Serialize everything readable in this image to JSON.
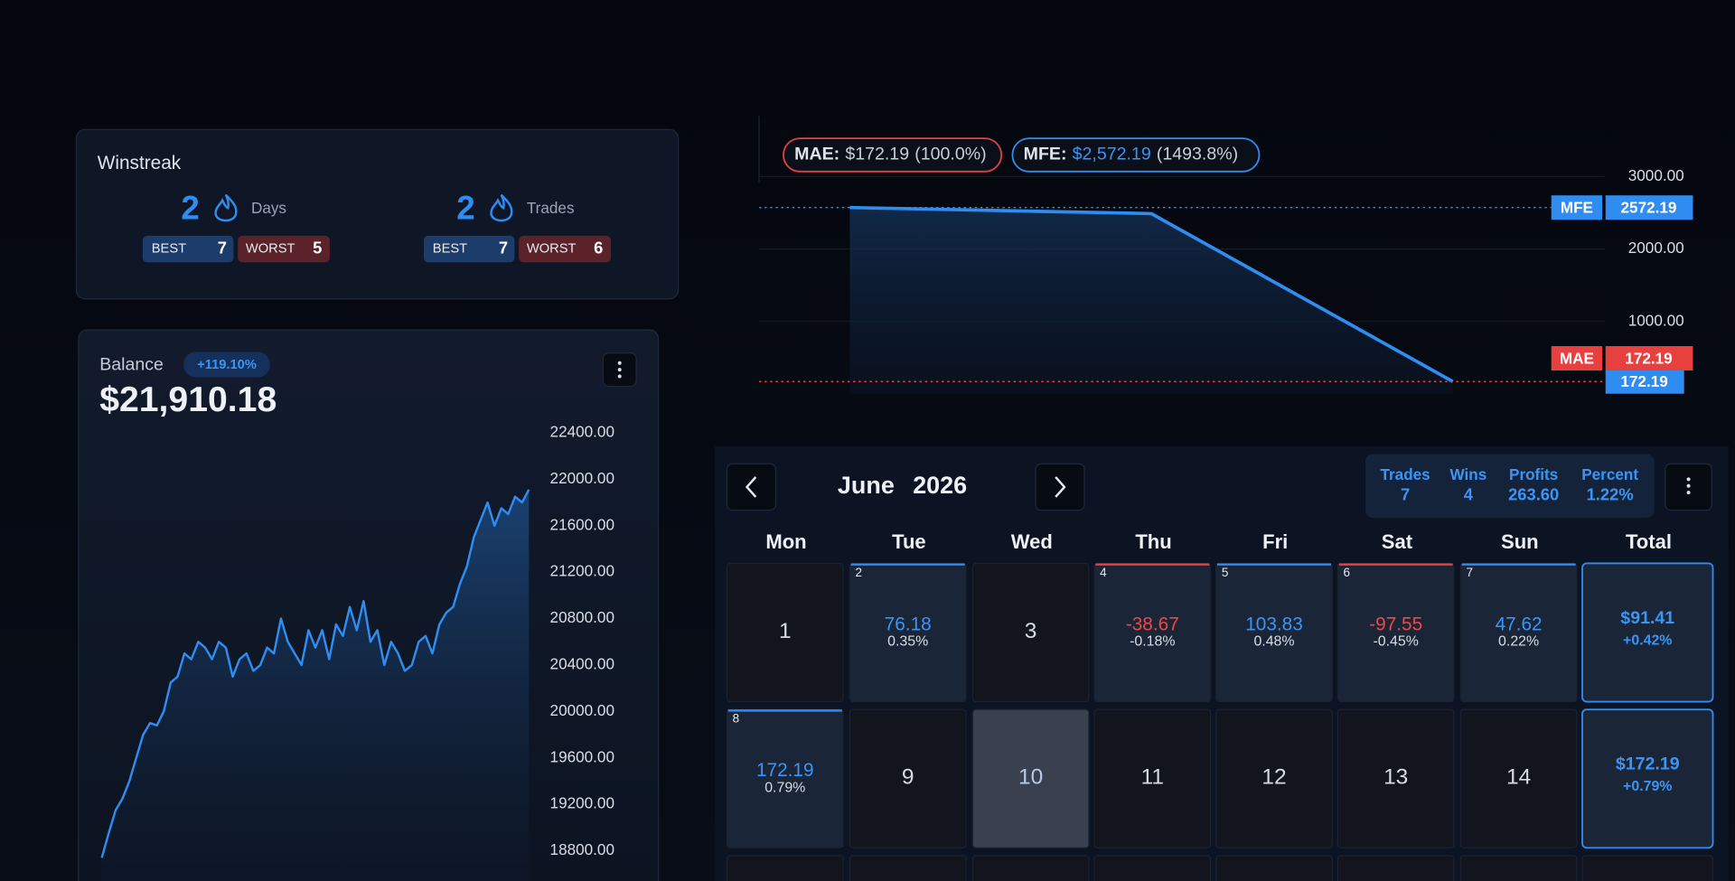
{
  "winstreak": {
    "title": "Winstreak",
    "best_label": "BEST",
    "worst_label": "WORST",
    "groups": [
      {
        "count": 2,
        "unit": "Days",
        "best": 7,
        "worst": 5
      },
      {
        "count": 2,
        "unit": "Trades",
        "best": 7,
        "worst": 6
      }
    ]
  },
  "chart_data": [
    {
      "type": "line",
      "title": "Balance",
      "change": "+119.10%",
      "current": "$21,910.18",
      "color": "#2f8cf0",
      "values": [
        18740,
        18950,
        19150,
        19250,
        19400,
        19600,
        19800,
        19900,
        19880,
        20000,
        20250,
        20300,
        20500,
        20450,
        20600,
        20550,
        20450,
        20600,
        20550,
        20300,
        20450,
        20500,
        20350,
        20400,
        20550,
        20500,
        20800,
        20600,
        20500,
        20400,
        20700,
        20550,
        20700,
        20450,
        20750,
        20650,
        20900,
        20700,
        20950,
        20600,
        20700,
        20400,
        20600,
        20500,
        20350,
        20400,
        20600,
        20650,
        20500,
        20750,
        20850,
        20900,
        21100,
        21250,
        21500,
        21650,
        21800,
        21600,
        21750,
        21700,
        21850,
        21800,
        21910
      ],
      "ylim": [
        18540,
        22505
      ],
      "yticks": [
        {
          "value": 18800,
          "label": "18800.00"
        },
        {
          "value": 19200,
          "label": "19200.00"
        },
        {
          "value": 19600,
          "label": "19600.00"
        },
        {
          "value": 20000,
          "label": "20000.00"
        },
        {
          "value": 20400,
          "label": "20400.00"
        },
        {
          "value": 20800,
          "label": "20800.00"
        },
        {
          "value": 21200,
          "label": "21200.00"
        },
        {
          "value": 21600,
          "label": "21600.00"
        },
        {
          "value": 22000,
          "label": "22000.00"
        },
        {
          "value": 22400,
          "label": "22400.00"
        }
      ],
      "grid": false
    },
    {
      "type": "line",
      "categories": [
        null,
        null,
        null
      ],
      "values": [
        2572.19,
        2488,
        172.19
      ],
      "color": "#2f8cf0",
      "ylim": [
        0,
        3832
      ],
      "yticks": [
        {
          "value": 1000,
          "label": "1000.00"
        },
        {
          "value": 2000,
          "label": "2000.00"
        },
        {
          "value": 3000,
          "label": "3000.00"
        }
      ],
      "grid": true,
      "levels": [
        {
          "name": "MFE",
          "value": 2572.19,
          "color": "#2f8cf0"
        },
        {
          "name": "MAE",
          "value": 172.19,
          "color": "#e8403f"
        }
      ],
      "pills": [
        {
          "name": "MAE:",
          "amount": "$172.19",
          "percent": "(100.0%)",
          "color": "#e8403f"
        },
        {
          "name": "MFE:",
          "amount": "$2,572.19",
          "percent": "(1493.8%)",
          "color": "#2f8cf0"
        }
      ]
    }
  ],
  "calendar": {
    "month": "June",
    "year": "2026",
    "stats": [
      {
        "label": "Trades",
        "value": 7
      },
      {
        "label": "Wins",
        "value": 4
      },
      {
        "label": "Profits",
        "value": "263.60"
      },
      {
        "label": "Percent",
        "value": "1.22%"
      }
    ],
    "weekdays": [
      "Mon",
      "Tue",
      "Wed",
      "Thu",
      "Fri",
      "Sat",
      "Sun",
      "Total"
    ],
    "weeks": [
      {
        "days": [
          {
            "day": 1
          },
          {
            "day": 2,
            "pnl": "76.18",
            "pct": "0.35%"
          },
          {
            "day": 3
          },
          {
            "day": 4,
            "pnl": "-38.67",
            "pct": "-0.18%"
          },
          {
            "day": 5,
            "pnl": "103.83",
            "pct": "0.48%"
          },
          {
            "day": 6,
            "pnl": "-97.55",
            "pct": "-0.45%"
          },
          {
            "day": 7,
            "pnl": "47.62",
            "pct": "0.22%"
          }
        ],
        "total": {
          "pnl": "$91.41",
          "pct": "+0.42%"
        }
      },
      {
        "days": [
          {
            "day": 8,
            "pnl": "172.19",
            "pct": "0.79%"
          },
          {
            "day": 9
          },
          {
            "day": 10,
            "today": true
          },
          {
            "day": 11
          },
          {
            "day": 12
          },
          {
            "day": 13
          },
          {
            "day": 14
          }
        ],
        "total": {
          "pnl": "$172.19",
          "pct": "+0.79%"
        }
      }
    ]
  }
}
